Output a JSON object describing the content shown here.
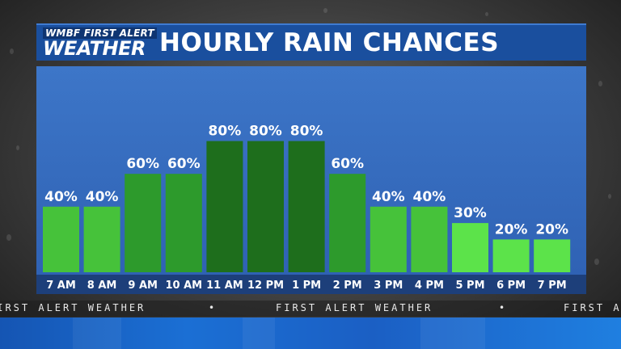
{
  "header": {
    "logo_top": "WMBF FIRST ALERT",
    "logo_bottom": "WEATHER",
    "title": "HOURLY RAIN CHANCES"
  },
  "ticker": {
    "text": "FIRST ALERT WEATHER"
  },
  "colors": {
    "light_green": "#5ce34a",
    "medium_green": "#46c23a",
    "green": "#2d9a2c",
    "dark_green": "#1e6e1c",
    "panel_blue": "#3568ba",
    "header_blue": "#1a4f9e"
  },
  "chart_data": {
    "type": "bar",
    "title": "HOURLY RAIN CHANCES",
    "xlabel": "",
    "ylabel": "",
    "ylim": [
      0,
      100
    ],
    "grid": false,
    "categories": [
      "7 AM",
      "8 AM",
      "9 AM",
      "10 AM",
      "11 AM",
      "12 PM",
      "1 PM",
      "2 PM",
      "3 PM",
      "4 PM",
      "5 PM",
      "6 PM",
      "7 PM"
    ],
    "values": [
      40,
      40,
      60,
      60,
      80,
      80,
      80,
      60,
      40,
      40,
      30,
      20,
      20
    ],
    "value_labels": [
      "40%",
      "40%",
      "60%",
      "60%",
      "80%",
      "80%",
      "80%",
      "60%",
      "40%",
      "40%",
      "30%",
      "20%",
      "20%"
    ],
    "bar_colors": [
      "#46c23a",
      "#46c23a",
      "#2d9a2c",
      "#2d9a2c",
      "#1e6e1c",
      "#1e6e1c",
      "#1e6e1c",
      "#2d9a2c",
      "#46c23a",
      "#46c23a",
      "#5ce34a",
      "#5ce34a",
      "#5ce34a"
    ]
  }
}
